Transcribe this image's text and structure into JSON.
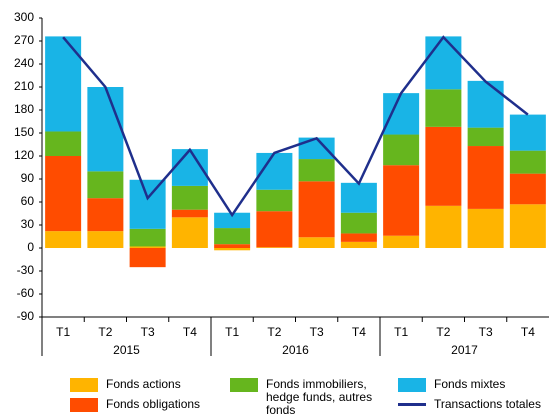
{
  "chart_data": {
    "type": "bar",
    "stacked": true,
    "categories": [
      "T1",
      "T2",
      "T3",
      "T4",
      "T1",
      "T2",
      "T3",
      "T4",
      "T1",
      "T2",
      "T3",
      "T4"
    ],
    "years": [
      "2015",
      "2016",
      "2017"
    ],
    "series": [
      {
        "name": "Fonds actions",
        "color": "#ffb400",
        "values": [
          22,
          22,
          2,
          40,
          -3,
          1,
          14,
          8,
          16,
          55,
          51,
          57
        ]
      },
      {
        "name": "Fonds obligations",
        "color": "#ff4c00",
        "values": [
          98,
          43,
          -25,
          10,
          5,
          47,
          73,
          11,
          92,
          103,
          82,
          40
        ]
      },
      {
        "name": "Fonds immobiliers, hedge funds, autres fonds",
        "color": "#66b61e",
        "values": [
          32,
          35,
          23,
          31,
          21,
          28,
          29,
          27,
          40,
          49,
          24,
          30
        ]
      },
      {
        "name": "Fonds mixtes",
        "color": "#19b4e6",
        "values": [
          124,
          110,
          64,
          48,
          20,
          48,
          28,
          39,
          54,
          69,
          61,
          47
        ]
      },
      {
        "name": "Transactions totales",
        "color": "#1f2f8c",
        "type": "line",
        "values": [
          275,
          210,
          65,
          128,
          43,
          124,
          143,
          84,
          202,
          275,
          217,
          174
        ]
      }
    ],
    "ylim": [
      -90,
      300
    ],
    "yticks": [
      -90,
      -60,
      -30,
      0,
      30,
      60,
      90,
      120,
      150,
      180,
      210,
      240,
      270,
      300
    ]
  }
}
